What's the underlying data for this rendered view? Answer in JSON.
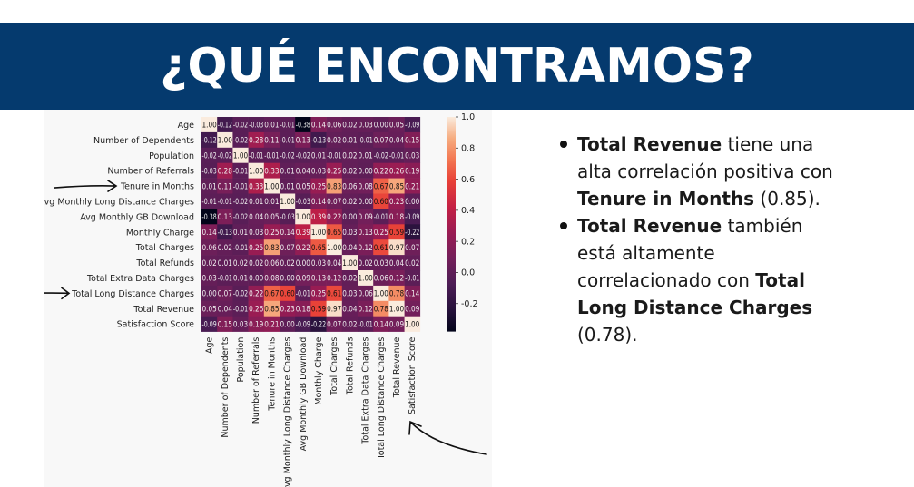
{
  "banner": {
    "title": "¿QUÉ ENCONTRAMOS?"
  },
  "bullets": [
    {
      "b1": "Total Revenue",
      "t1": " tiene una alta correlación positiva con ",
      "b2": "Tenure in Months",
      "t2": " (0.85)."
    },
    {
      "b1": "Total Revenue",
      "t1": " también está altamente correlacionado con ",
      "b2": "Total Long Distance Charges",
      "t2": " (0.78)."
    }
  ],
  "colors": {
    "banner_bg": "#053a6e",
    "arrow": "#111111"
  },
  "icons": [
    "arrow-tenure-icon",
    "arrow-long-distance-icon",
    "curved-arrow-icon"
  ],
  "chart_data": {
    "type": "heatmap",
    "variables": [
      "Age",
      "Number of Dependents",
      "Population",
      "Number of Referrals",
      "Tenure in Months",
      "Avg Monthly Long Distance Charges",
      "Avg Monthly GB Download",
      "Monthly Charge",
      "Total Charges",
      "Total Refunds",
      "Total Extra Data Charges",
      "Total Long Distance Charges",
      "Total Revenue",
      "Satisfaction Score"
    ],
    "labels": [
      [
        "1.00",
        "-0.12",
        "-0.02",
        "-0.03",
        "0.01",
        "-0.01",
        "-0.38",
        "0.14",
        "0.06",
        "0.02",
        "0.03",
        "0.00",
        "0.05",
        "-0.09"
      ],
      [
        "-0.12",
        "1.00",
        "-0.02",
        "0.28",
        "0.11",
        "-0.01",
        "0.13",
        "-0.13",
        "0.02",
        "0.01",
        "-0.01",
        "0.07",
        "0.04",
        "0.15"
      ],
      [
        "-0.02",
        "-0.02",
        "1.00",
        "-0.01",
        "-0.01",
        "-0.02",
        "-0.02",
        "0.01",
        "-0.01",
        "0.02",
        "0.01",
        "-0.02",
        "-0.01",
        "0.03"
      ],
      [
        "-0.03",
        "0.28",
        "-0.01",
        "1.00",
        "0.33",
        "0.01",
        "0.04",
        "0.03",
        "0.25",
        "0.02",
        "0.00",
        "0.22",
        "0.26",
        "0.19"
      ],
      [
        "0.01",
        "0.11",
        "-0.01",
        "0.33",
        "1.00",
        "0.01",
        "0.05",
        "0.25",
        "0.83",
        "0.06",
        "0.08",
        "0.67",
        "0.85",
        "0.21"
      ],
      [
        "-0.01",
        "-0.01",
        "-0.02",
        "0.01",
        "0.01",
        "1.00",
        "-0.03",
        "0.14",
        "0.07",
        "0.02",
        "0.00",
        "0.60",
        "0.23",
        "0.00"
      ],
      [
        "-0.38",
        "0.13",
        "-0.02",
        "0.04",
        "0.05",
        "-0.03",
        "1.00",
        "0.39",
        "0.22",
        "0.00",
        "0.09",
        "-0.01",
        "0.18",
        "-0.09"
      ],
      [
        "0.14",
        "-0.13",
        "0.01",
        "0.03",
        "0.25",
        "0.14",
        "0.39",
        "1.00",
        "0.65",
        "0.03",
        "0.13",
        "0.25",
        "0.59",
        "-0.22"
      ],
      [
        "0.06",
        "0.02",
        "-0.01",
        "0.25",
        "0.83",
        "0.07",
        "0.22",
        "0.65",
        "1.00",
        "0.04",
        "0.12",
        "0.61",
        "0.97",
        "0.07"
      ],
      [
        "0.02",
        "0.01",
        "0.02",
        "0.02",
        "0.06",
        "0.02",
        "0.00",
        "0.03",
        "0.04",
        "1.00",
        "0.02",
        "0.03",
        "0.04",
        "0.02"
      ],
      [
        "0.03",
        "-0.01",
        "0.01",
        "0.00",
        "0.08",
        "0.00",
        "0.09",
        "0.13",
        "0.12",
        "0.02",
        "1.00",
        "0.06",
        "0.12",
        "-0.01"
      ],
      [
        "0.00",
        "0.07",
        "-0.02",
        "0.22",
        "0.67",
        "0.60",
        "-0.01",
        "0.25",
        "0.61",
        "0.03",
        "0.06",
        "1.00",
        "0.78",
        "0.14"
      ],
      [
        "0.05",
        "0.04",
        "-0.01",
        "0.26",
        "0.85",
        "0.23",
        "0.18",
        "0.59",
        "0.97",
        "0.04",
        "0.12",
        "0.78",
        "1.00",
        "0.09"
      ],
      [
        "-0.09",
        "0.15",
        "0.03",
        "0.19",
        "0.21",
        "0.00",
        "-0.09",
        "-0.22",
        "0.07",
        "0.02",
        "-0.01",
        "0.14",
        "0.09",
        "1.00"
      ]
    ],
    "colorbar_ticks": [
      "1.0",
      "0.8",
      "0.6",
      "0.4",
      "0.2",
      "0.0",
      "-0.2"
    ],
    "vmin": -0.38,
    "vmax": 1.0
  }
}
